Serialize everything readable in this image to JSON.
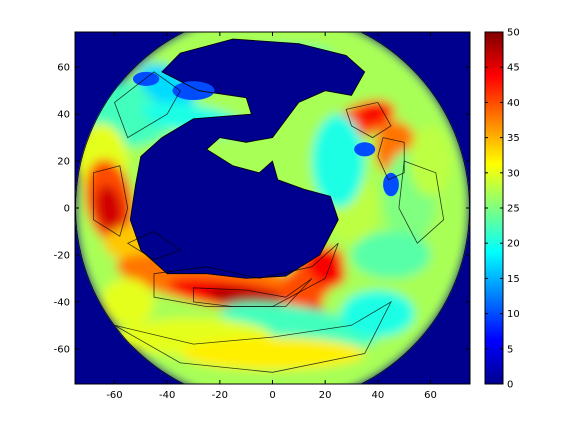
{
  "chart_data": {
    "type": "heatmap",
    "title": "",
    "xlabel": "",
    "ylabel": "",
    "xlim": [
      -75,
      75
    ],
    "ylim": [
      -75,
      75
    ],
    "x_ticks": [
      -60,
      -40,
      -20,
      0,
      20,
      40,
      60
    ],
    "y_ticks": [
      60,
      40,
      20,
      0,
      -20,
      -40,
      -60
    ],
    "colorbar": {
      "range": [
        0,
        50
      ],
      "ticks": [
        0,
        5,
        10,
        15,
        20,
        25,
        30,
        35,
        40,
        45,
        50
      ],
      "colormap": "jet"
    },
    "domain": "circular disk centered at (0, 0), radius ~ 75",
    "background_value": 0,
    "masked_landmass_value": 0,
    "features": [
      {
        "description": "high-value band along the southern edge of the interior landmass",
        "center": [
          -5,
          -37
        ],
        "value": 47
      },
      {
        "description": "high-value region on the western rim",
        "center": [
          -62,
          5
        ],
        "value": 45
      },
      {
        "description": "high-value band along eastern coast, north",
        "center": [
          35,
          38
        ],
        "value": 42
      },
      {
        "description": "elevated region along eastern coast",
        "center": [
          45,
          25
        ],
        "value": 38
      },
      {
        "description": "moderate ring around the disk edge",
        "center": [
          0,
          -60
        ],
        "value": 30
      },
      {
        "description": "eastern outer rim band",
        "center": [
          58,
          5
        ],
        "value": 28
      }
    ],
    "grid": false,
    "contour_lines": true
  },
  "colors": {
    "background": "#ffffff",
    "plot_background": "#00008f",
    "axis": "#000000"
  }
}
